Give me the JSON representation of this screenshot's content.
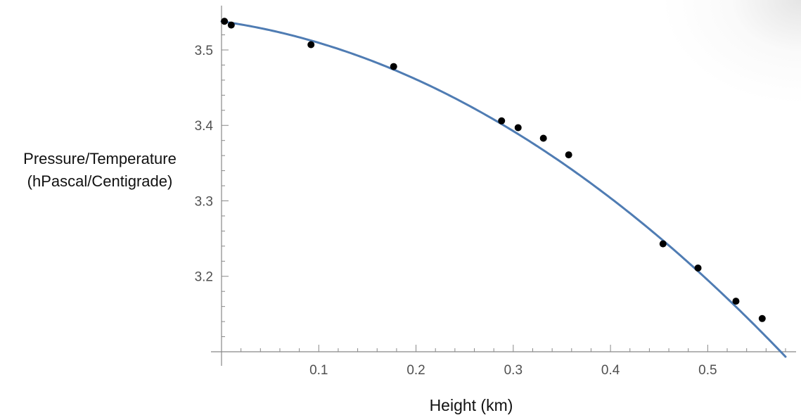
{
  "chart_data": {
    "type": "scatter",
    "title": "",
    "xlabel": "Height (km)",
    "ylabel_lines": [
      "Pressure/Temperature",
      "(hPascal/Centigrade)"
    ],
    "xlim": [
      0,
      0.58
    ],
    "ylim": [
      3.1,
      3.555
    ],
    "x_ticks": [
      0.1,
      0.2,
      0.3,
      0.4,
      0.5
    ],
    "x_tick_labels": [
      "0.1",
      "0.2",
      "0.3",
      "0.4",
      "0.5"
    ],
    "y_ticks": [
      3.2,
      3.3,
      3.4,
      3.5
    ],
    "y_tick_labels": [
      "3.2",
      "3.3",
      "3.4",
      "3.5"
    ],
    "grid": false,
    "legend": "none",
    "series": [
      {
        "kind": "points",
        "color": "#000000",
        "x": [
          0.003,
          0.01,
          0.092,
          0.177,
          0.288,
          0.305,
          0.331,
          0.357,
          0.454,
          0.49,
          0.529,
          0.556
        ],
        "y": [
          3.538,
          3.533,
          3.507,
          3.478,
          3.406,
          3.397,
          3.383,
          3.361,
          3.243,
          3.211,
          3.167,
          3.144
        ]
      },
      {
        "kind": "fit-curve",
        "color": "#4f7cb3",
        "model": "quadratic",
        "coefficients": [
          3.5378,
          -0.1825,
          -1.0064
        ]
      }
    ]
  }
}
